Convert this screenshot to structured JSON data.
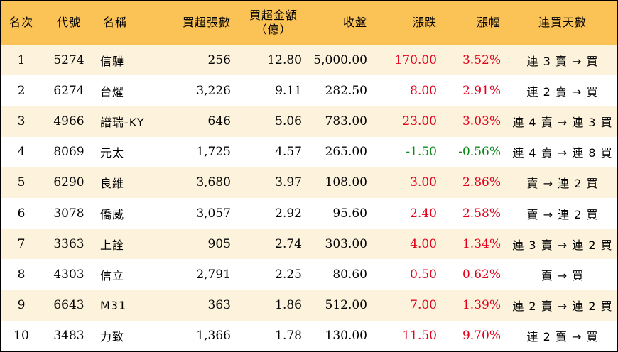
{
  "colors": {
    "header_bg": "#fbc256",
    "odd_row_bg": "#fdf3dc",
    "up": "#e3001b",
    "down": "#0b8a1b"
  },
  "headers": {
    "rank": "名次",
    "code": "代號",
    "name": "名稱",
    "lots": "買超張數",
    "amount_line1": "買超金額",
    "amount_line2": "（億）",
    "close": "收盤",
    "change": "漲跌",
    "pct": "漲幅",
    "streak": "連買天數"
  },
  "rows": [
    {
      "rank": "1",
      "code": "5274",
      "name": "信驊",
      "lots": "256",
      "amount": "12.80",
      "close": "5,000.00",
      "change": "170.00",
      "pct": "3.52%",
      "dir": "up",
      "streak": "連 3 賣 → 買"
    },
    {
      "rank": "2",
      "code": "6274",
      "name": "台燿",
      "lots": "3,226",
      "amount": "9.11",
      "close": "282.50",
      "change": "8.00",
      "pct": "2.91%",
      "dir": "up",
      "streak": "連 2 賣 → 買"
    },
    {
      "rank": "3",
      "code": "4966",
      "name": "譜瑞-KY",
      "lots": "646",
      "amount": "5.06",
      "close": "783.00",
      "change": "23.00",
      "pct": "3.03%",
      "dir": "up",
      "streak": "連 4 賣 → 連 3 買"
    },
    {
      "rank": "4",
      "code": "8069",
      "name": "元太",
      "lots": "1,725",
      "amount": "4.57",
      "close": "265.00",
      "change": "-1.50",
      "pct": "-0.56%",
      "dir": "down",
      "streak": "連 4 賣 → 連 8 買"
    },
    {
      "rank": "5",
      "code": "6290",
      "name": "良維",
      "lots": "3,680",
      "amount": "3.97",
      "close": "108.00",
      "change": "3.00",
      "pct": "2.86%",
      "dir": "up",
      "streak": "賣 → 連 2 買"
    },
    {
      "rank": "6",
      "code": "3078",
      "name": "僑威",
      "lots": "3,057",
      "amount": "2.92",
      "close": "95.60",
      "change": "2.40",
      "pct": "2.58%",
      "dir": "up",
      "streak": "賣 → 連 2 買"
    },
    {
      "rank": "7",
      "code": "3363",
      "name": "上詮",
      "lots": "905",
      "amount": "2.74",
      "close": "303.00",
      "change": "4.00",
      "pct": "1.34%",
      "dir": "up",
      "streak": "連 3 賣 → 連 2 買"
    },
    {
      "rank": "8",
      "code": "4303",
      "name": "信立",
      "lots": "2,791",
      "amount": "2.25",
      "close": "80.60",
      "change": "0.50",
      "pct": "0.62%",
      "dir": "up",
      "streak": "賣 → 買"
    },
    {
      "rank": "9",
      "code": "6643",
      "name": "M31",
      "lots": "363",
      "amount": "1.86",
      "close": "512.00",
      "change": "7.00",
      "pct": "1.39%",
      "dir": "up",
      "streak": "連 2 賣 → 連 2 買"
    },
    {
      "rank": "10",
      "code": "3483",
      "name": "力致",
      "lots": "1,366",
      "amount": "1.78",
      "close": "130.00",
      "change": "11.50",
      "pct": "9.70%",
      "dir": "up",
      "streak": "連 2 賣 → 買"
    }
  ]
}
